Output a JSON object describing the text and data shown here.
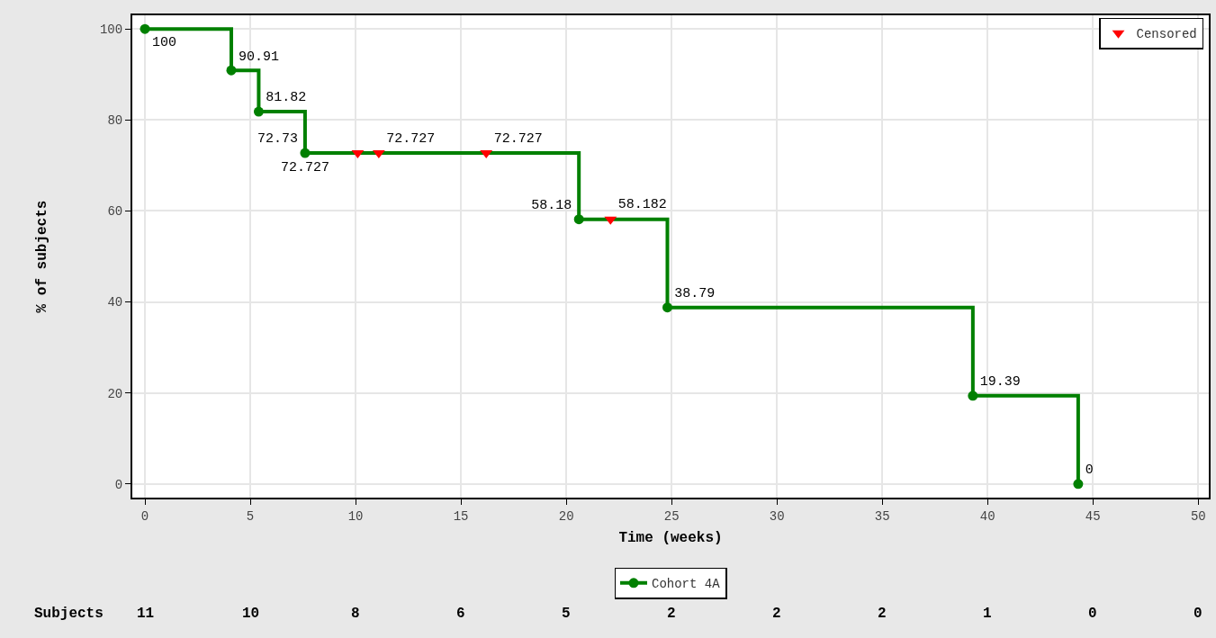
{
  "chart_data": {
    "type": "step",
    "xlabel": "Time (weeks)",
    "ylabel": "% of subjects",
    "xlim": [
      -0.6,
      50.5
    ],
    "ylim": [
      -3,
      103
    ],
    "xticks": [
      0,
      5,
      10,
      15,
      20,
      25,
      30,
      35,
      40,
      45,
      50
    ],
    "yticks": [
      0,
      20,
      40,
      60,
      80,
      100
    ],
    "grid": true,
    "legend": "bottom",
    "marker": "circle",
    "line_style": "solid",
    "series": [
      {
        "name": "Cohort 4A",
        "color": "#008000",
        "x": [
          0,
          4.1,
          5.4,
          7.6,
          20.6,
          24.8,
          39.3,
          44.3
        ],
        "values": [
          100,
          90.91,
          81.82,
          72.73,
          58.18,
          38.79,
          19.39,
          0
        ],
        "value_labels": [
          "100",
          "90.91",
          "81.82",
          "72.73",
          "58.18",
          "38.79",
          "19.39",
          "0"
        ]
      },
      {
        "name": "Censored",
        "type": "scatter",
        "marker": "triangle",
        "color": "#ff0000",
        "x": [
          10.1,
          11.1,
          16.2,
          22.1
        ],
        "values": [
          72.727,
          72.727,
          72.727,
          58.182
        ],
        "value_labels": [
          null,
          "72.727",
          "72.727",
          "58.182"
        ]
      }
    ],
    "annotations": [
      {
        "text": "72.727",
        "x": 7.6,
        "y": 72.727
      },
      "Subjects",
      "11",
      "10",
      "8",
      "6",
      "5",
      "2",
      "2",
      "2",
      "1",
      "0",
      "0"
    ]
  }
}
